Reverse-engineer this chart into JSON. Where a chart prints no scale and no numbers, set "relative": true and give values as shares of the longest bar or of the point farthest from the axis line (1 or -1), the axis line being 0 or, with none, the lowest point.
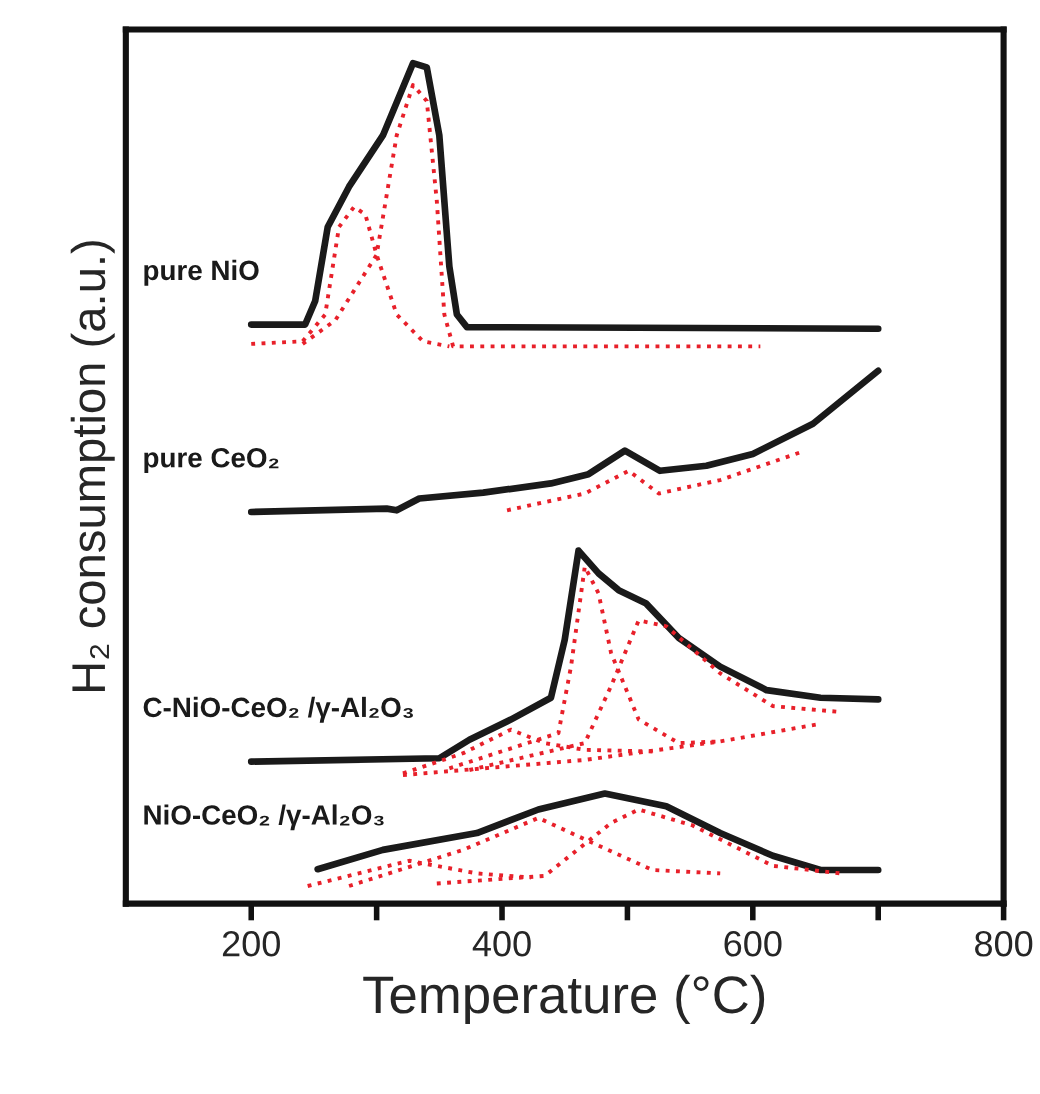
{
  "chart_data": {
    "type": "line",
    "relative": true,
    "xlabel": "Temperature (°C)",
    "ylabel": "H₂ consumption (a.u.)",
    "xlim": [
      100,
      800
    ],
    "xticks": [
      200,
      {
        "value": 300,
        "label": null
      },
      400,
      {
        "value": 500,
        "label": null
      },
      600,
      {
        "value": 700,
        "label": null
      },
      800
    ],
    "series": [
      {
        "name": "pure NiO",
        "color": "#1a1a1a",
        "line_style": "solid",
        "x": [
          200,
          243,
          251,
          261,
          278,
          305,
          329,
          340,
          350,
          358,
          364,
          372,
          700
        ],
        "values": [
          0.689,
          0.689,
          0.717,
          0.805,
          0.853,
          0.914,
          1,
          0.995,
          0.914,
          0.758,
          0.701,
          0.686,
          0.684
        ]
      },
      {
        "color": "#e8202a",
        "line_style": "dotted",
        "x": [
          200,
          241,
          259,
          270,
          282,
          291,
          300,
          316,
          337,
          358
        ],
        "values": [
          0.666,
          0.669,
          0.701,
          0.805,
          0.829,
          0.82,
          0.772,
          0.701,
          0.669,
          0.663
        ]
      },
      {
        "color": "#e8202a",
        "line_style": "dotted",
        "x": [
          241,
          267,
          300,
          316,
          329,
          340,
          348,
          354,
          361,
          606
        ],
        "values": [
          0.666,
          0.694,
          0.772,
          0.914,
          0.974,
          0.955,
          0.836,
          0.701,
          0.663,
          0.663
        ]
      },
      {
        "name": "pure CeO₂",
        "color": "#1a1a1a",
        "line_style": "solid",
        "x": [
          200,
          308,
          316,
          334,
          385,
          439,
          469,
          498,
          526,
          563,
          600,
          648,
          700
        ],
        "values": [
          0.466,
          0.47,
          0.468,
          0.482,
          0.489,
          0.5,
          0.511,
          0.539,
          0.515,
          0.521,
          0.535,
          0.571,
          0.634
        ]
      },
      {
        "color": "#e8202a",
        "line_style": "dotted",
        "x": [
          404,
          466,
          501,
          525,
          574,
          638
        ],
        "values": [
          0.468,
          0.488,
          0.515,
          0.488,
          0.504,
          0.537
        ]
      },
      {
        "name": "C-NiO-CeO₂ /γ-Al₂O₃",
        "color": "#1a1a1a",
        "line_style": "solid",
        "x": [
          200,
          350,
          374,
          407,
          439,
          450,
          461,
          477,
          493,
          515,
          541,
          574,
          611,
          654,
          700
        ],
        "values": [
          0.169,
          0.173,
          0.195,
          0.219,
          0.245,
          0.314,
          0.42,
          0.393,
          0.373,
          0.357,
          0.316,
          0.282,
          0.254,
          0.245,
          0.243
        ]
      },
      {
        "color": "#e8202a",
        "line_style": "dotted",
        "x": [
          321,
          369,
          407,
          434,
          466,
          520
        ],
        "values": [
          0.155,
          0.179,
          0.207,
          0.191,
          0.183,
          0.181
        ]
      },
      {
        "color": "#e8202a",
        "line_style": "dotted",
        "x": [
          358,
          445,
          455,
          466,
          477,
          487,
          509,
          541,
          574
        ],
        "values": [
          0.161,
          0.203,
          0.282,
          0.401,
          0.369,
          0.298,
          0.219,
          0.191,
          0.193
        ]
      },
      {
        "color": "#e8202a",
        "line_style": "dotted",
        "x": [
          374,
          466,
          487,
          509,
          531,
          574,
          616,
          670
        ],
        "values": [
          0.159,
          0.191,
          0.259,
          0.337,
          0.33,
          0.274,
          0.235,
          0.228
        ]
      },
      {
        "color": "#e8202a",
        "line_style": "dotted",
        "x": [
          321,
          466,
          574,
          654
        ],
        "values": [
          0.153,
          0.171,
          0.193,
          0.214
        ]
      },
      {
        "name": "NiO-CeO₂ /γ-Al₂O₃",
        "color": "#1a1a1a",
        "line_style": "solid",
        "x": [
          253,
          305,
          380,
          429,
          482,
          531,
          574,
          616,
          654,
          700
        ],
        "values": [
          0.041,
          0.064,
          0.084,
          0.112,
          0.131,
          0.116,
          0.084,
          0.057,
          0.04,
          0.04
        ]
      },
      {
        "color": "#e8202a",
        "line_style": "dotted",
        "x": [
          245,
          326,
          380,
          423
        ],
        "values": [
          0.021,
          0.051,
          0.036,
          0.031
        ]
      },
      {
        "color": "#e8202a",
        "line_style": "dotted",
        "x": [
          278,
          369,
          429,
          477,
          520,
          574
        ],
        "values": [
          0.021,
          0.064,
          0.102,
          0.069,
          0.04,
          0.036
        ]
      },
      {
        "color": "#e8202a",
        "line_style": "dotted",
        "x": [
          348,
          434,
          487,
          509,
          552,
          616,
          670
        ],
        "values": [
          0.024,
          0.033,
          0.096,
          0.112,
          0.093,
          0.045,
          0.036
        ]
      }
    ]
  }
}
